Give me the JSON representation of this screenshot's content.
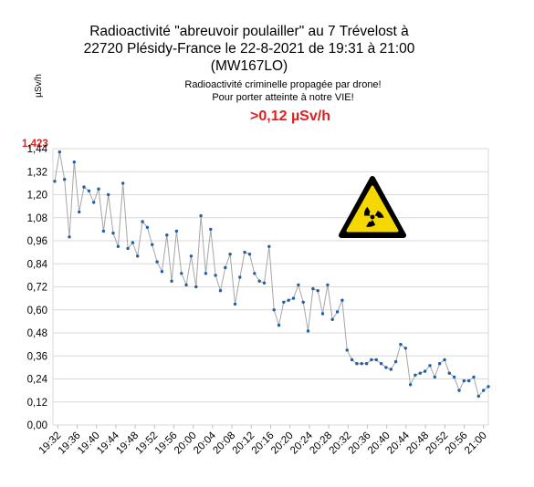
{
  "chart_data": {
    "type": "line",
    "title_lines": [
      "Radioactivité \"abreuvoir poulailler\" au 7 Trévelost à",
      "22720 Plésidy-France le 22-8-2021 de 19:31 à 21:00",
      "(MW167LO)"
    ],
    "subtitle_lines": [
      "Radioactivité criminelle propagée par drone!",
      "Pour porter atteinte à notre VIE!"
    ],
    "highlight": ">0,12 µSv/h",
    "ylabel": "µSv/h",
    "peak_label": "1,423",
    "ylim": [
      0,
      1.44
    ],
    "yticks": [
      "0,00",
      "0,12",
      "0,24",
      "0,36",
      "0,48",
      "0,60",
      "0,72",
      "0,84",
      "0,96",
      "1,08",
      "1,20",
      "1,32",
      "1,44"
    ],
    "xticks": [
      "19:32",
      "19:36",
      "19:40",
      "19:44",
      "19:48",
      "19:52",
      "19:56",
      "20:00",
      "20:04",
      "20:08",
      "20:12",
      "20:16",
      "20:20",
      "20:24",
      "20:28",
      "20:32",
      "20:36",
      "20:40",
      "20:44",
      "20:48",
      "20:52",
      "20:56",
      "21:00"
    ],
    "grid": true,
    "legend": "none",
    "hazard_icon": "radiation-warning-icon",
    "colors": {
      "line": "#a6a6a6",
      "marker": "#1f5fa8",
      "highlight": "#e02020",
      "grid": "#d9d9d9",
      "hazard_fill": "#f5d800"
    },
    "x_start": "19:31",
    "x_end": "21:01",
    "series": [
      {
        "values": [
          1.27,
          1.423,
          1.28,
          0.98,
          1.37,
          1.11,
          1.24,
          1.22,
          1.16,
          1.23,
          1.01,
          1.2,
          1.0,
          0.93,
          1.26,
          0.92,
          0.95,
          0.88,
          1.06,
          1.03,
          0.94,
          0.85,
          0.8,
          0.99,
          0.75,
          1.01,
          0.79,
          0.73,
          0.88,
          0.72,
          1.09,
          0.79,
          1.02,
          0.78,
          0.7,
          0.82,
          0.89,
          0.63,
          0.77,
          0.9,
          0.89,
          0.79,
          0.75,
          0.74,
          0.93,
          0.6,
          0.52,
          0.64,
          0.65,
          0.66,
          0.73,
          0.64,
          0.49,
          0.71,
          0.7,
          0.58,
          0.73,
          0.55,
          0.59,
          0.65,
          0.39,
          0.34,
          0.32,
          0.32,
          0.32,
          0.34,
          0.34,
          0.32,
          0.3,
          0.29,
          0.33,
          0.42,
          0.4,
          0.21,
          0.26,
          0.27,
          0.28,
          0.31,
          0.25,
          0.32,
          0.34,
          0.27,
          0.25,
          0.18,
          0.23,
          0.23,
          0.25,
          0.15,
          0.18,
          0.2
        ]
      }
    ]
  }
}
